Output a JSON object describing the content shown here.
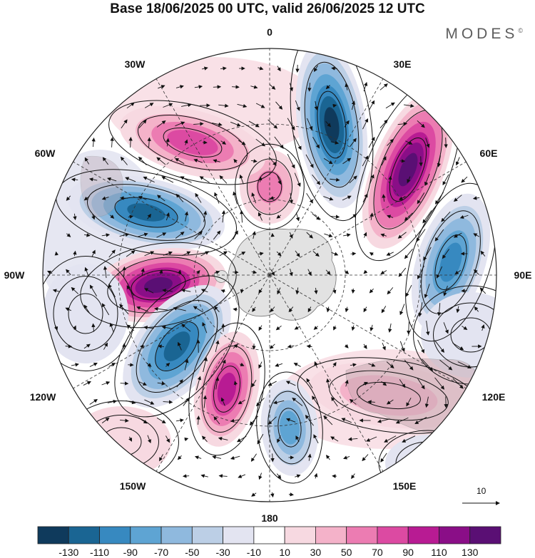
{
  "title": "Base 18/06/2025 00 UTC, valid 26/06/2025 12 UTC",
  "brand": "MODES",
  "brand_mark": "©",
  "longitude_labels": {
    "lon_0": "0",
    "lon_30e": "30E",
    "lon_60e": "60E",
    "lon_90e": "90E",
    "lon_120e": "120E",
    "lon_150e": "150E",
    "lon_180": "180",
    "lon_150w": "150W",
    "lon_120w": "120W",
    "lon_90w": "90W",
    "lon_60w": "60W",
    "lon_30w": "30W"
  },
  "vector_reference": "10",
  "colorbar": {
    "colors": [
      "#0f3a5c",
      "#1a6593",
      "#3789c0",
      "#5ea4d3",
      "#8fb9de",
      "#bccfe6",
      "#e3e4f1",
      "#ffffff",
      "#f7d9e1",
      "#f4b2c9",
      "#ec7cb2",
      "#dc4aa2",
      "#b81b93",
      "#8a0e87",
      "#5a0f74"
    ],
    "tick_labels": [
      "-130",
      "-110",
      "-90",
      "-70",
      "-50",
      "-30",
      "-10",
      "10",
      "30",
      "50",
      "70",
      "90",
      "110",
      "130"
    ]
  },
  "legend": {
    "anomaly_colors": {
      "strong_negative": "#0f3a5c",
      "strong_positive": "#5a0f74",
      "land": "#d8d8d8",
      "antarctica": "#e2e2e2"
    }
  }
}
